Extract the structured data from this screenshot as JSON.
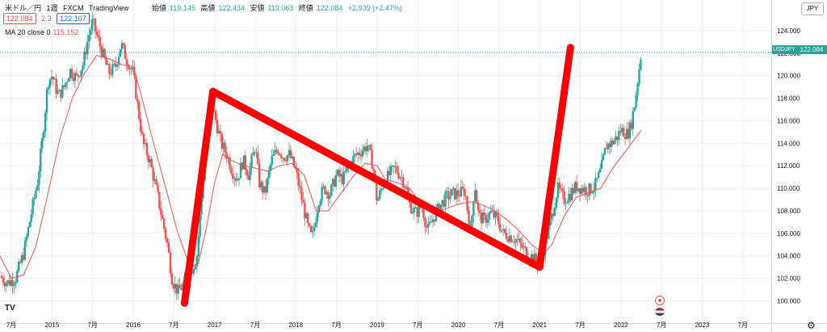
{
  "header": {
    "symbol_desc": "米ドル／円",
    "interval": "1週",
    "broker": "FXCM",
    "source": "TradingView",
    "open_label": "始値",
    "open": "119.145",
    "high_label": "高値",
    "high": "122.434",
    "low_label": "安値",
    "low": "119.063",
    "close_label": "終値",
    "close": "122.084",
    "change": "+2.939 (+2.47%)",
    "bid": "122.084",
    "spread": "2.3",
    "ask": "122.107",
    "ma_label": "MA 20 close 0",
    "ma_value": "115.152"
  },
  "currency_button": "JPY",
  "price_tag": {
    "symbol": "USDJPY",
    "value": "122.084"
  },
  "colors": {
    "up": "#26a69a",
    "down": "#ef5350",
    "ma": "#ef5350",
    "annotation": "#ff0000",
    "grid": "#eef0f3"
  },
  "chart_data": {
    "type": "candlestick",
    "symbol": "USDJPY",
    "interval": "1W",
    "ylim": [
      98.6,
      126.0
    ],
    "y_ticks": [
      100,
      102,
      104,
      106,
      108,
      110,
      112,
      114,
      116,
      118,
      120,
      122,
      124
    ],
    "y_tick_labels": [
      "100.000",
      "102.000",
      "104.000",
      "106.000",
      "108.000",
      "110.000",
      "112.000",
      "114.000",
      "116.000",
      "118.000",
      "120.000",
      "122.000",
      "124.000"
    ],
    "x_range": [
      2014.36,
      2023.85
    ],
    "x_ticks": [
      {
        "label": "7月",
        "t": 2014.5
      },
      {
        "label": "2015",
        "t": 2015.0
      },
      {
        "label": "7月",
        "t": 2015.5
      },
      {
        "label": "2016",
        "t": 2016.0
      },
      {
        "label": "7月",
        "t": 2016.5
      },
      {
        "label": "2017",
        "t": 2017.0
      },
      {
        "label": "7月",
        "t": 2017.5
      },
      {
        "label": "2018",
        "t": 2018.0
      },
      {
        "label": "7月",
        "t": 2018.5
      },
      {
        "label": "2019",
        "t": 2019.0
      },
      {
        "label": "7月",
        "t": 2019.5
      },
      {
        "label": "2020",
        "t": 2020.0
      },
      {
        "label": "7月",
        "t": 2020.5
      },
      {
        "label": "2021",
        "t": 2021.0
      },
      {
        "label": "7月",
        "t": 2021.5
      },
      {
        "label": "2022",
        "t": 2022.0
      },
      {
        "label": "7月",
        "t": 2022.5
      },
      {
        "label": "2023",
        "t": 2023.0
      },
      {
        "label": "7月",
        "t": 2023.5
      }
    ],
    "series": [
      {
        "kind": "price",
        "points": [
          [
            2014.36,
            102.2
          ],
          [
            2014.45,
            101.6
          ],
          [
            2014.55,
            102.0
          ],
          [
            2014.65,
            104.2
          ],
          [
            2014.75,
            108.0
          ],
          [
            2014.82,
            110.5
          ],
          [
            2014.88,
            114.2
          ],
          [
            2014.95,
            119.5
          ],
          [
            2015.0,
            120.0
          ],
          [
            2015.08,
            118.2
          ],
          [
            2015.15,
            119.0
          ],
          [
            2015.22,
            120.5
          ],
          [
            2015.3,
            119.8
          ],
          [
            2015.38,
            121.0
          ],
          [
            2015.45,
            123.5
          ],
          [
            2015.5,
            124.8
          ],
          [
            2015.55,
            123.6
          ],
          [
            2015.62,
            122.0
          ],
          [
            2015.7,
            120.2
          ],
          [
            2015.78,
            120.8
          ],
          [
            2015.85,
            122.8
          ],
          [
            2015.92,
            121.4
          ],
          [
            2016.0,
            120.2
          ],
          [
            2016.05,
            117.5
          ],
          [
            2016.12,
            114.0
          ],
          [
            2016.2,
            112.5
          ],
          [
            2016.28,
            110.0
          ],
          [
            2016.35,
            107.5
          ],
          [
            2016.42,
            105.0
          ],
          [
            2016.48,
            101.8
          ],
          [
            2016.55,
            100.8
          ],
          [
            2016.62,
            101.5
          ],
          [
            2016.7,
            102.5
          ],
          [
            2016.78,
            103.8
          ],
          [
            2016.85,
            110.0
          ],
          [
            2016.9,
            115.0
          ],
          [
            2016.95,
            117.8
          ],
          [
            2017.0,
            116.5
          ],
          [
            2017.08,
            114.0
          ],
          [
            2017.15,
            113.0
          ],
          [
            2017.22,
            111.5
          ],
          [
            2017.28,
            110.8
          ],
          [
            2017.35,
            112.5
          ],
          [
            2017.42,
            111.2
          ],
          [
            2017.5,
            113.8
          ],
          [
            2017.55,
            110.5
          ],
          [
            2017.62,
            109.5
          ],
          [
            2017.7,
            112.5
          ],
          [
            2017.78,
            113.5
          ],
          [
            2017.85,
            112.8
          ],
          [
            2017.92,
            113.0
          ],
          [
            2018.0,
            111.5
          ],
          [
            2018.08,
            108.8
          ],
          [
            2018.15,
            106.5
          ],
          [
            2018.2,
            105.5
          ],
          [
            2018.28,
            109.0
          ],
          [
            2018.35,
            110.0
          ],
          [
            2018.42,
            109.5
          ],
          [
            2018.5,
            111.2
          ],
          [
            2018.58,
            110.8
          ],
          [
            2018.65,
            112.0
          ],
          [
            2018.72,
            112.8
          ],
          [
            2018.8,
            113.3
          ],
          [
            2018.88,
            113.8
          ],
          [
            2018.95,
            112.0
          ],
          [
            2019.0,
            108.8
          ],
          [
            2019.08,
            110.5
          ],
          [
            2019.15,
            111.2
          ],
          [
            2019.22,
            111.8
          ],
          [
            2019.3,
            111.0
          ],
          [
            2019.35,
            110.2
          ],
          [
            2019.4,
            108.5
          ],
          [
            2019.48,
            107.8
          ],
          [
            2019.55,
            108.5
          ],
          [
            2019.62,
            106.2
          ],
          [
            2019.7,
            107.5
          ],
          [
            2019.78,
            108.5
          ],
          [
            2019.85,
            109.2
          ],
          [
            2019.92,
            109.5
          ],
          [
            2020.0,
            109.5
          ],
          [
            2020.08,
            109.8
          ],
          [
            2020.15,
            106.0
          ],
          [
            2020.2,
            110.5
          ],
          [
            2020.25,
            107.5
          ],
          [
            2020.32,
            107.2
          ],
          [
            2020.4,
            107.8
          ],
          [
            2020.48,
            107.2
          ],
          [
            2020.55,
            106.0
          ],
          [
            2020.62,
            105.8
          ],
          [
            2020.7,
            105.5
          ],
          [
            2020.78,
            104.8
          ],
          [
            2020.85,
            104.2
          ],
          [
            2020.92,
            103.8
          ],
          [
            2021.0,
            103.2
          ],
          [
            2021.08,
            105.5
          ],
          [
            2021.15,
            107.5
          ],
          [
            2021.22,
            110.0
          ],
          [
            2021.3,
            109.0
          ],
          [
            2021.38,
            109.5
          ],
          [
            2021.45,
            110.2
          ],
          [
            2021.52,
            110.0
          ],
          [
            2021.6,
            109.8
          ],
          [
            2021.68,
            110.2
          ],
          [
            2021.75,
            111.5
          ],
          [
            2021.82,
            113.8
          ],
          [
            2021.88,
            114.0
          ],
          [
            2021.95,
            114.5
          ],
          [
            2022.0,
            115.2
          ],
          [
            2022.08,
            114.8
          ],
          [
            2022.12,
            115.5
          ],
          [
            2022.17,
            117.5
          ],
          [
            2022.2,
            119.2
          ],
          [
            2022.25,
            122.08
          ]
        ]
      },
      {
        "kind": "ma",
        "name": "MA 20 close 0",
        "points": [
          [
            2014.36,
            104.0
          ],
          [
            2014.5,
            102.0
          ],
          [
            2014.65,
            102.3
          ],
          [
            2014.8,
            104.8
          ],
          [
            2014.95,
            109.5
          ],
          [
            2015.1,
            114.5
          ],
          [
            2015.25,
            118.0
          ],
          [
            2015.4,
            120.2
          ],
          [
            2015.55,
            121.8
          ],
          [
            2015.7,
            121.5
          ],
          [
            2015.85,
            121.0
          ],
          [
            2016.0,
            120.8
          ],
          [
            2016.1,
            118.2
          ],
          [
            2016.25,
            114.0
          ],
          [
            2016.4,
            110.0
          ],
          [
            2016.55,
            106.0
          ],
          [
            2016.7,
            103.0
          ],
          [
            2016.8,
            103.3
          ],
          [
            2016.9,
            106.5
          ],
          [
            2017.0,
            110.5
          ],
          [
            2017.1,
            113.0
          ],
          [
            2017.2,
            112.5
          ],
          [
            2017.35,
            112.0
          ],
          [
            2017.5,
            111.8
          ],
          [
            2017.65,
            111.5
          ],
          [
            2017.8,
            112.0
          ],
          [
            2017.95,
            112.2
          ],
          [
            2018.1,
            111.2
          ],
          [
            2018.25,
            108.0
          ],
          [
            2018.4,
            108.0
          ],
          [
            2018.55,
            109.5
          ],
          [
            2018.7,
            111.0
          ],
          [
            2018.85,
            112.2
          ],
          [
            2019.0,
            112.0
          ],
          [
            2019.1,
            110.8
          ],
          [
            2019.25,
            110.5
          ],
          [
            2019.4,
            110.0
          ],
          [
            2019.55,
            108.5
          ],
          [
            2019.7,
            107.8
          ],
          [
            2019.85,
            108.2
          ],
          [
            2020.0,
            108.6
          ],
          [
            2020.15,
            108.8
          ],
          [
            2020.3,
            108.5
          ],
          [
            2020.45,
            108.0
          ],
          [
            2020.6,
            107.2
          ],
          [
            2020.75,
            106.2
          ],
          [
            2020.9,
            105.0
          ],
          [
            2021.05,
            104.2
          ],
          [
            2021.15,
            105.0
          ],
          [
            2021.3,
            107.5
          ],
          [
            2021.45,
            109.2
          ],
          [
            2021.6,
            109.6
          ],
          [
            2021.75,
            110.0
          ],
          [
            2021.9,
            111.8
          ],
          [
            2022.05,
            113.2
          ],
          [
            2022.15,
            114.2
          ],
          [
            2022.25,
            115.15
          ]
        ]
      }
    ],
    "annotations": [
      {
        "kind": "line",
        "from": [
          2016.63,
          99.8
        ],
        "to": [
          2016.98,
          118.6
        ]
      },
      {
        "kind": "line",
        "from": [
          2016.98,
          118.6
        ],
        "to": [
          2021.0,
          103.0
        ]
      },
      {
        "kind": "line",
        "from": [
          2021.0,
          103.0
        ],
        "to": [
          2021.38,
          122.5
        ]
      }
    ],
    "last_price": 122.084
  },
  "footer": {
    "logo": "TV"
  }
}
